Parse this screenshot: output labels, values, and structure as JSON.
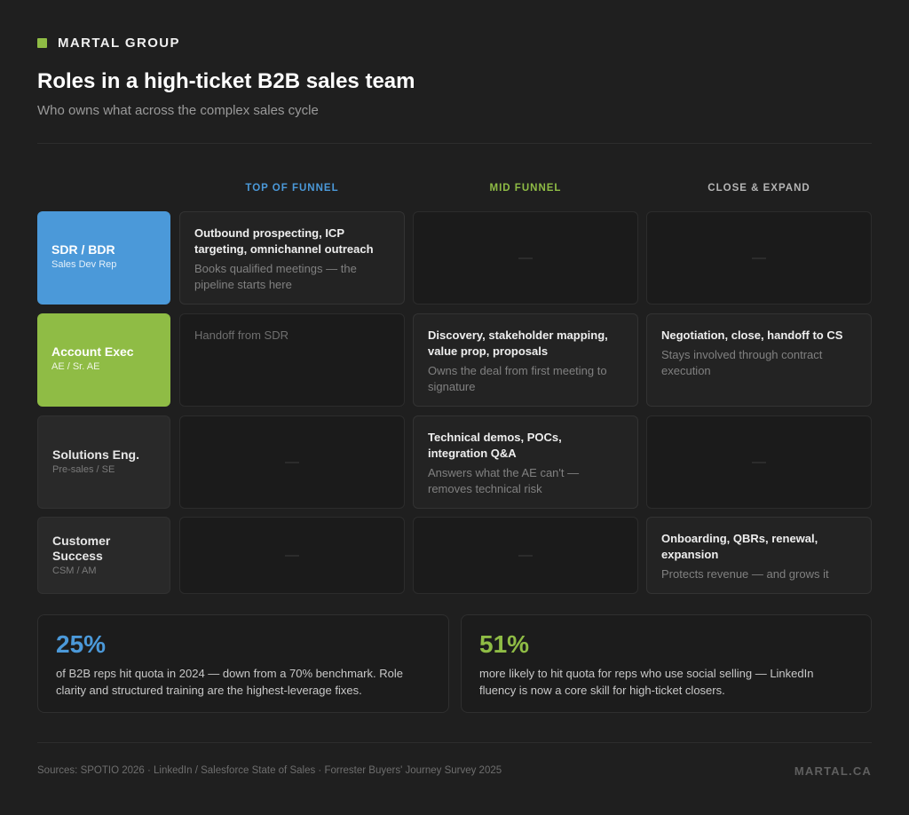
{
  "brand": {
    "name": "MARTAL GROUP",
    "accent": "#8fbc45"
  },
  "title": "Roles in a high-ticket B2B sales team",
  "subtitle": "Who owns what across the complex sales cycle",
  "columns": [
    {
      "label": "TOP OF FUNNEL",
      "color": "#4b99d9"
    },
    {
      "label": "MID FUNNEL",
      "color": "#8fbc45"
    },
    {
      "label": "CLOSE & EXPAND",
      "color": "#b5b5b5"
    }
  ],
  "rows": [
    {
      "title": "SDR / BDR",
      "sub": "Sales Dev Rep",
      "color": "#4b99d9",
      "cells": [
        {
          "title": "Outbound prospecting, ICP targeting, omnichannel outreach",
          "desc": "Books qualified meetings — the pipeline starts here"
        },
        {
          "empty": true
        },
        {
          "empty": true
        }
      ]
    },
    {
      "title": "Account Exec",
      "sub": "AE / Sr. AE",
      "color": "#8fbc45",
      "cells": [
        {
          "note": "Handoff from SDR"
        },
        {
          "title": "Discovery, stakeholder mapping, value prop, proposals",
          "desc": "Owns the deal from first meeting to signature"
        },
        {
          "title": "Negotiation, close, handoff to CS",
          "desc": "Stays involved through contract execution"
        }
      ]
    },
    {
      "title": "Solutions Eng.",
      "sub": "Pre-sales / SE",
      "color": "#292929",
      "cells": [
        {
          "empty": true
        },
        {
          "title": "Technical demos, POCs, integration Q&A",
          "desc": "Answers what the AE can't — removes technical risk"
        },
        {
          "empty": true
        }
      ]
    },
    {
      "title": "Customer Success",
      "sub": "CSM / AM",
      "color": "#292929",
      "cells": [
        {
          "empty": true
        },
        {
          "empty": true
        },
        {
          "title": "Onboarding, QBRs, renewal, expansion",
          "desc": "Protects revenue — and grows it"
        }
      ]
    }
  ],
  "stats": [
    {
      "value": "25%",
      "color": "#4b99d9",
      "text": "of B2B reps hit quota in 2024 — down from a 70% benchmark. Role clarity and structured training are the highest-leverage fixes."
    },
    {
      "value": "51%",
      "color": "#8fbc45",
      "text": "more likely to hit quota for reps who use social selling — LinkedIn fluency is now a core skill for high-ticket closers."
    }
  ],
  "footer": {
    "sources": "Sources: SPOTIO 2026 · LinkedIn / Salesforce State of Sales · Forrester Buyers' Journey Survey 2025",
    "brand": "MARTAL.CA"
  }
}
